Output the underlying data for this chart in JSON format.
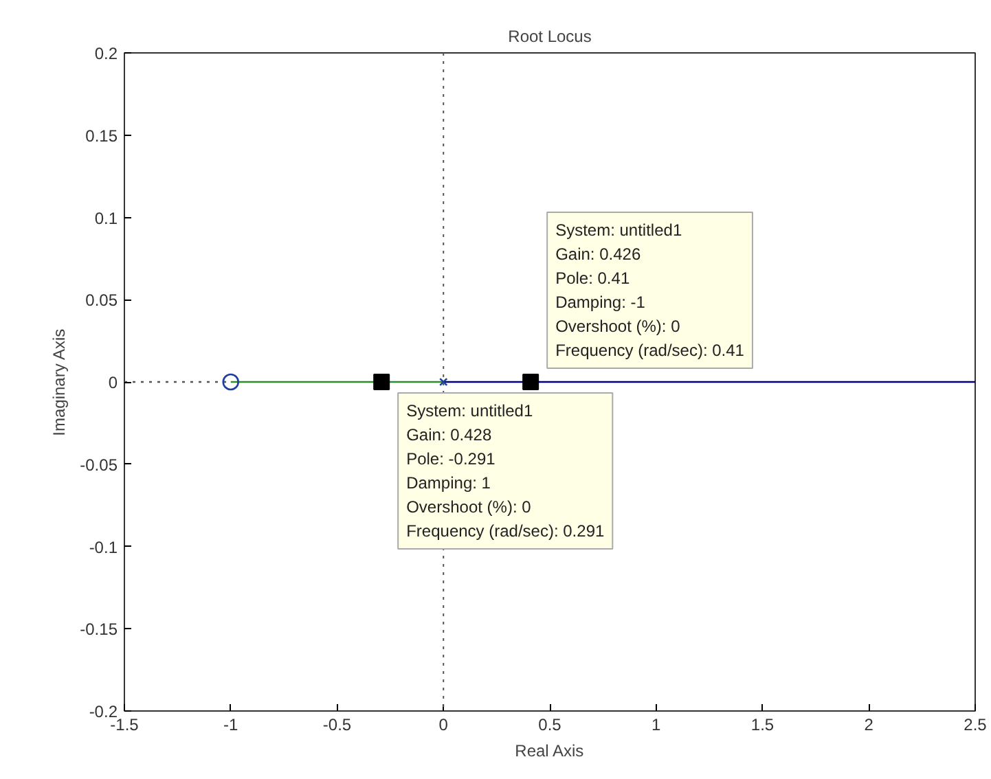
{
  "chart_data": {
    "type": "line",
    "title": "Root Locus",
    "xlabel": "Real Axis",
    "ylabel": "Imaginary Axis",
    "xlim": [
      -1.5,
      2.5
    ],
    "ylim": [
      -0.2,
      0.2
    ],
    "xticks": [
      -1.5,
      -1,
      -0.5,
      0,
      0.5,
      1,
      1.5,
      2,
      2.5
    ],
    "yticks": [
      -0.2,
      -0.15,
      -0.1,
      -0.05,
      0,
      0.05,
      0.1,
      0.15,
      0.2
    ],
    "grid": false,
    "ref_lines": [
      {
        "axis": "x",
        "value": 0,
        "color": "#555555",
        "line_style": "dotted"
      }
    ],
    "series": [
      {
        "x": [
          -1.5,
          -1
        ],
        "values": [
          0,
          0
        ],
        "color": "#555555",
        "line_style": "dotted"
      },
      {
        "x": [
          -1,
          0
        ],
        "values": [
          0,
          0
        ],
        "color": "#2e8b2e",
        "line_style": "solid"
      },
      {
        "x": [
          0,
          2.5
        ],
        "values": [
          0,
          0
        ],
        "color": "#00007f",
        "line_style": "solid"
      },
      {
        "type": "scatter",
        "x": [
          -1
        ],
        "values": [
          0
        ],
        "color": "#1f3fa0",
        "marker": "circle"
      },
      {
        "type": "scatter",
        "x": [
          0
        ],
        "values": [
          0
        ],
        "color": "#1f3fa0",
        "marker": "cross"
      },
      {
        "type": "scatter",
        "x": [
          -0.291,
          0.41
        ],
        "values": [
          0,
          0
        ],
        "color": "#000000",
        "marker": "square"
      }
    ],
    "annotations": [
      {
        "text": "System: untitled1\nGain: 0.426\nPole: 0.41\nDamping: -1\nOvershoot (%): 0\nFrequency (rad/sec): 0.41",
        "x": 0.41,
        "y": 0
      },
      {
        "text": "System: untitled1\nGain: 0.428\nPole: -0.291\nDamping: 1\nOvershoot (%): 0\nFrequency (rad/sec): 0.291",
        "x": -0.291,
        "y": 0
      }
    ]
  }
}
